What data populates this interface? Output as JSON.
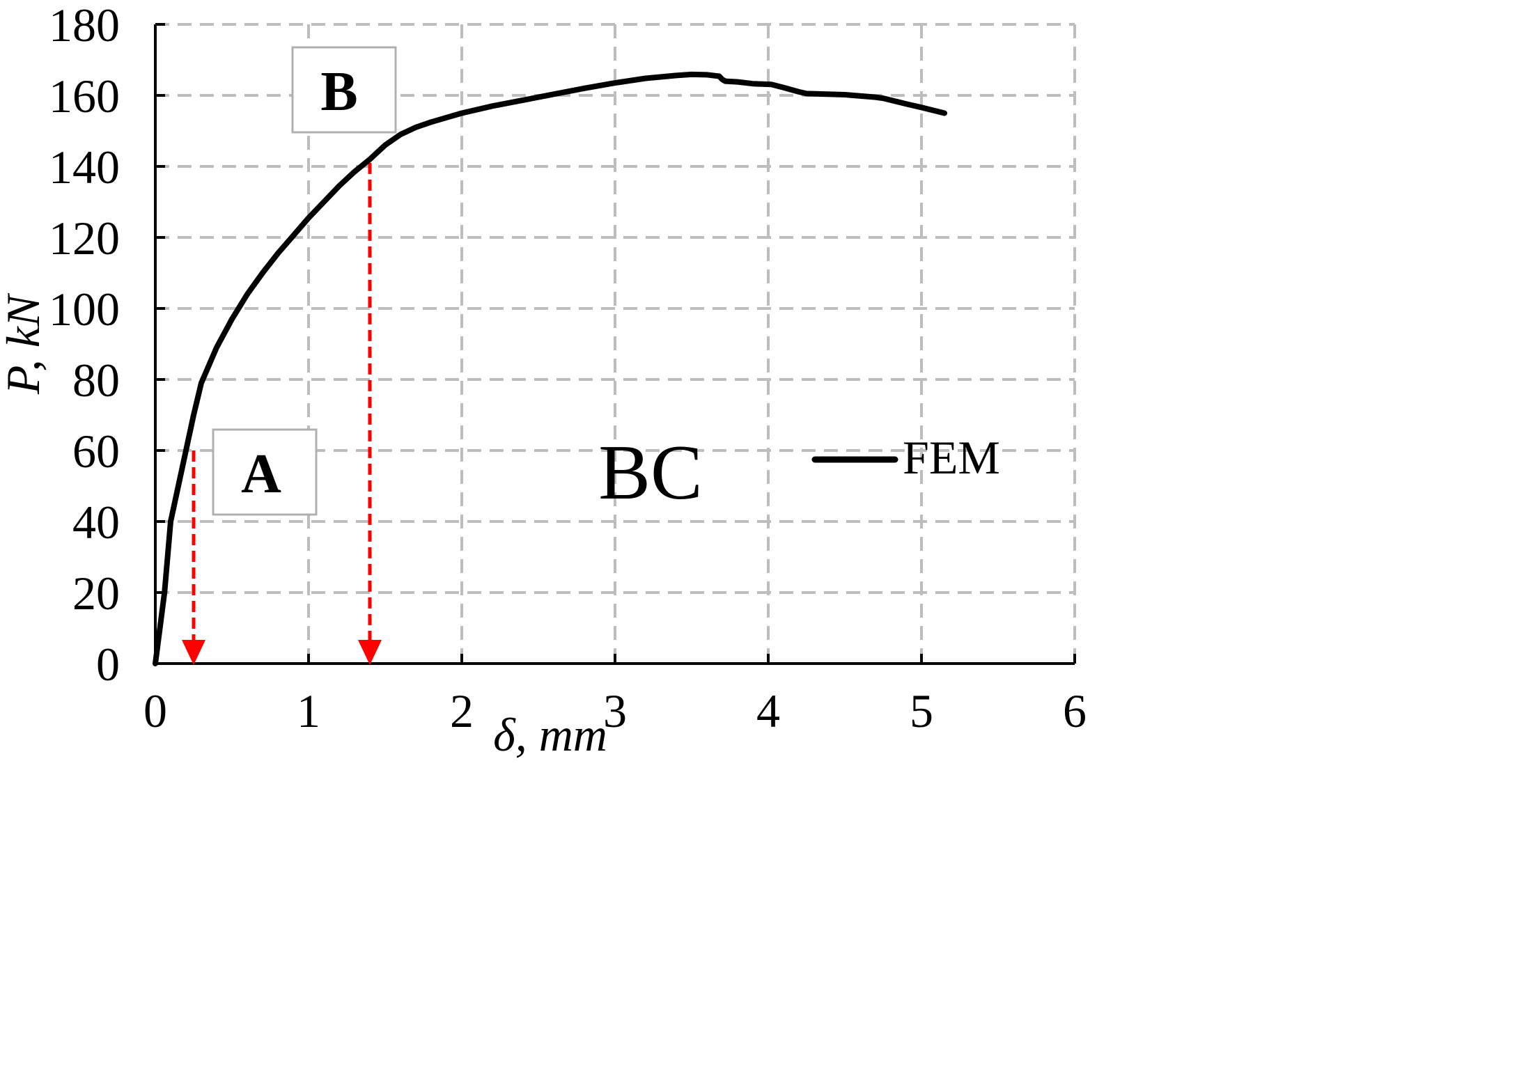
{
  "chart_data": {
    "type": "line",
    "xlabel": "δ, mm",
    "ylabel": "P, kN",
    "xlim": [
      0,
      6
    ],
    "ylim": [
      0,
      180
    ],
    "xticks": [
      0,
      1,
      2,
      3,
      4,
      5,
      6
    ],
    "yticks": [
      0,
      20,
      40,
      60,
      80,
      100,
      120,
      140,
      160,
      180
    ],
    "grid": true,
    "legend_position": "right",
    "series": [
      {
        "name": "FEM",
        "color": "#000000",
        "x": [
          0,
          0.06,
          0.1,
          0.15,
          0.2,
          0.25,
          0.3,
          0.4,
          0.5,
          0.6,
          0.7,
          0.8,
          0.9,
          1.0,
          1.1,
          1.2,
          1.3,
          1.4,
          1.45,
          1.5,
          1.6,
          1.7,
          1.8,
          2.0,
          2.2,
          2.5,
          2.8,
          3.0,
          3.2,
          3.4,
          3.5,
          3.6,
          3.68,
          3.7,
          3.72,
          3.8,
          3.9,
          4.02,
          4.1,
          4.2,
          4.25,
          4.5,
          4.7,
          4.75,
          4.9,
          5.0,
          5.15
        ],
        "y": [
          0,
          20,
          40,
          50,
          60,
          70,
          79,
          89,
          97,
          104,
          110,
          115.5,
          120.5,
          125.5,
          130,
          134.5,
          138.5,
          142,
          144,
          146,
          149,
          151,
          152.5,
          155,
          157,
          159.5,
          162,
          163.5,
          164.8,
          165.6,
          165.9,
          165.8,
          165.4,
          164.5,
          164,
          163.8,
          163.3,
          163.1,
          162.2,
          161,
          160.5,
          160.2,
          159.5,
          159.2,
          157.6,
          156.6,
          155
        ]
      }
    ],
    "annotations": [
      {
        "type": "drop-arrow",
        "color": "#ff0000",
        "x": 0.25,
        "y_from": 60
      },
      {
        "type": "drop-arrow",
        "color": "#ff0000",
        "x": 1.4,
        "y_from": 141
      }
    ],
    "labels": {
      "box_a": "A",
      "box_b": "B",
      "region": "BC"
    }
  }
}
